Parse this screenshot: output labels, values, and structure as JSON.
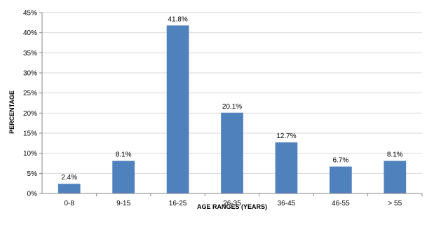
{
  "chart_data": {
    "type": "bar",
    "title": "",
    "xlabel": "AGE RANGES (YEARS)",
    "ylabel": "PERCENTAGE",
    "categories": [
      "0-8",
      "9-15",
      "16-25",
      "26-35",
      "36-45",
      "46-55",
      "> 55"
    ],
    "values": [
      2.4,
      8.1,
      41.8,
      20.1,
      12.7,
      6.7,
      8.1
    ],
    "data_labels": [
      "2.4%",
      "8.1%",
      "41.8%",
      "20.1%",
      "12.7%",
      "6.7%",
      "8.1%"
    ],
    "y_ticks": [
      0,
      5,
      10,
      15,
      20,
      25,
      30,
      35,
      40,
      45
    ],
    "y_tick_labels": [
      "0%",
      "5%",
      "10%",
      "15%",
      "20%",
      "25%",
      "30%",
      "35%",
      "40%",
      "45%"
    ],
    "ylim": [
      0,
      45
    ],
    "grid": true,
    "legend": "none",
    "colors": {
      "bar": "#4F81BD",
      "grid": "#D9D9D9",
      "axis": "#868686"
    }
  }
}
